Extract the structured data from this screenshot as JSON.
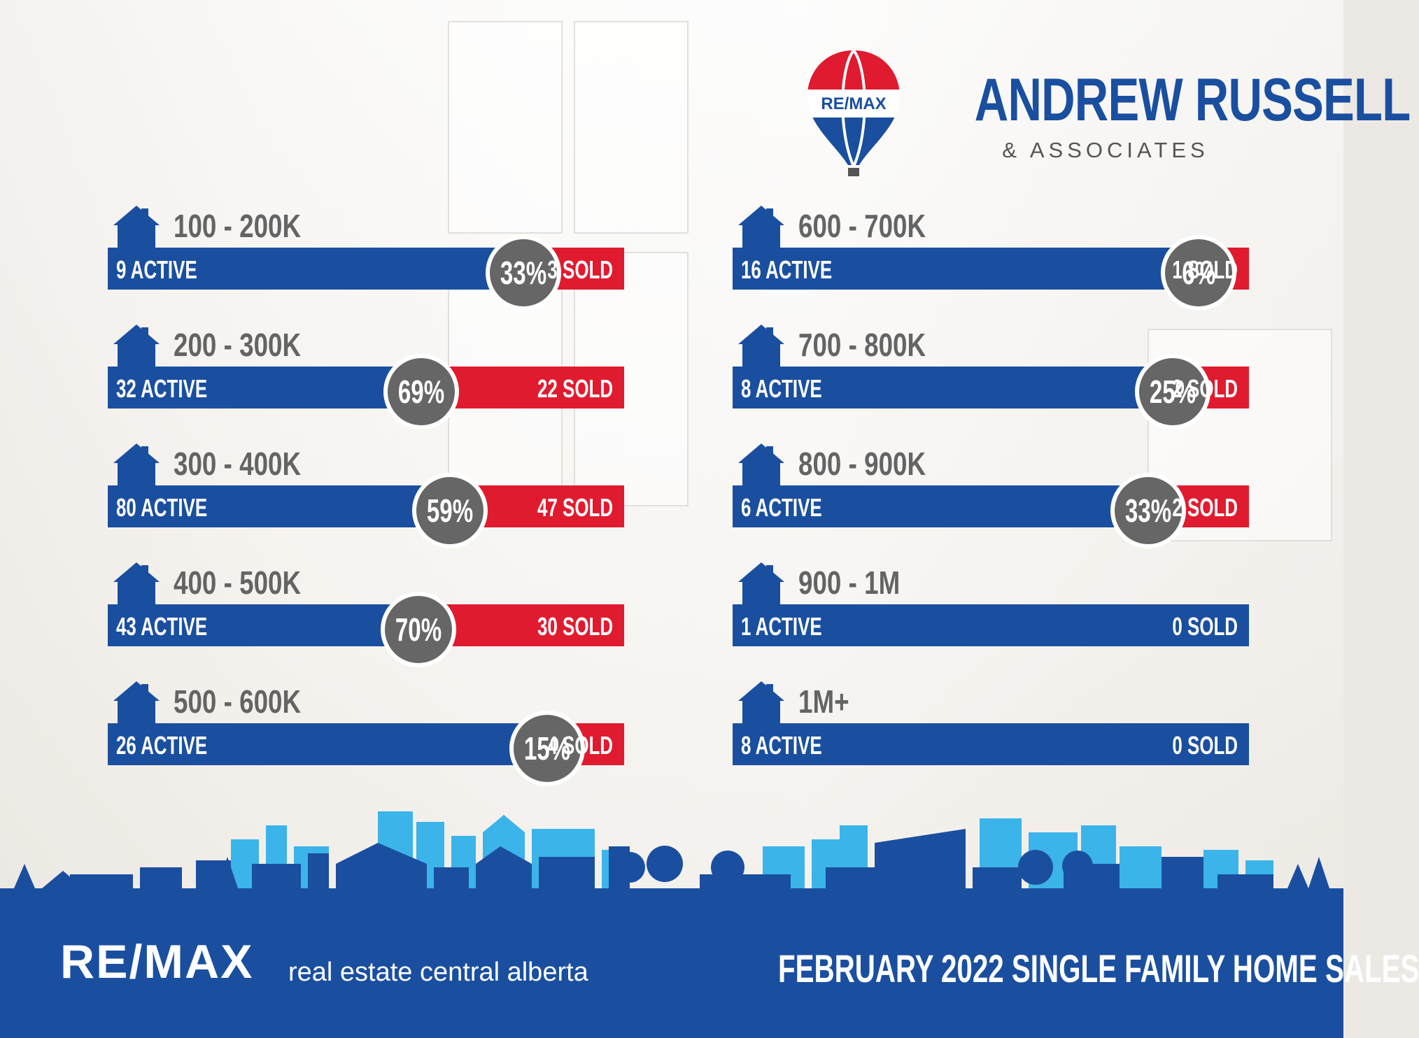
{
  "brand": {
    "balloon_text": "RE/MAX",
    "name": "ANDREW RUSSELL",
    "sub": "& ASSOCIATES"
  },
  "colors": {
    "blue": "#1a4fa0",
    "red": "#e01b2f",
    "gray": "#666666",
    "sky_light": "#3bb4ea"
  },
  "chart_data": {
    "type": "bar",
    "title": "FEBRUARY 2022 SINGLE FAMILY HOME SALES",
    "categories": [
      "100 - 200K",
      "200 - 300K",
      "300 - 400K",
      "400 - 500K",
      "500 - 600K",
      "600 - 700K",
      "700 - 800K",
      "800 - 900K",
      "900 - 1M",
      "1M+"
    ],
    "series": [
      {
        "name": "ACTIVE",
        "values": [
          9,
          32,
          80,
          43,
          26,
          16,
          8,
          6,
          1,
          8
        ]
      },
      {
        "name": "SOLD",
        "values": [
          3,
          22,
          47,
          30,
          4,
          1,
          2,
          2,
          0,
          0
        ]
      }
    ],
    "rows": [
      {
        "range": "100 - 200K",
        "active": 9,
        "sold": 3,
        "pct": 33,
        "active_label": "9 ACTIVE",
        "sold_label": "3 SOLD",
        "pct_label": "33%"
      },
      {
        "range": "200 - 300K",
        "active": 32,
        "sold": 22,
        "pct": 69,
        "active_label": "32 ACTIVE",
        "sold_label": "22 SOLD",
        "pct_label": "69%"
      },
      {
        "range": "300 - 400K",
        "active": 80,
        "sold": 47,
        "pct": 59,
        "active_label": "80 ACTIVE",
        "sold_label": "47 SOLD",
        "pct_label": "59%"
      },
      {
        "range": "400 - 500K",
        "active": 43,
        "sold": 30,
        "pct": 70,
        "active_label": "43 ACTIVE",
        "sold_label": "30 SOLD",
        "pct_label": "70%"
      },
      {
        "range": "500 - 600K",
        "active": 26,
        "sold": 4,
        "pct": 15,
        "active_label": "26 ACTIVE",
        "sold_label": "4 SOLD",
        "pct_label": "15%"
      },
      {
        "range": "600 - 700K",
        "active": 16,
        "sold": 1,
        "pct": 6,
        "active_label": "16 ACTIVE",
        "sold_label": "1 SOLD",
        "pct_label": "6%"
      },
      {
        "range": "700 - 800K",
        "active": 8,
        "sold": 2,
        "pct": 25,
        "active_label": "8 ACTIVE",
        "sold_label": "2 SOLD",
        "pct_label": "25%"
      },
      {
        "range": "800 - 900K",
        "active": 6,
        "sold": 2,
        "pct": 33,
        "active_label": "6 ACTIVE",
        "sold_label": "2 SOLD",
        "pct_label": "33%"
      },
      {
        "range": "900 - 1M",
        "active": 1,
        "sold": 0,
        "pct": null,
        "active_label": "1 ACTIVE",
        "sold_label": "0 SOLD",
        "pct_label": ""
      },
      {
        "range": "1M+",
        "active": 8,
        "sold": 0,
        "pct": null,
        "active_label": "8 ACTIVE",
        "sold_label": "0 SOLD",
        "pct_label": ""
      }
    ]
  },
  "footer": {
    "logo": "RE/MAX",
    "tagline": "real estate central alberta",
    "title": "FEBRUARY 2022 SINGLE FAMILY HOME SALES"
  }
}
